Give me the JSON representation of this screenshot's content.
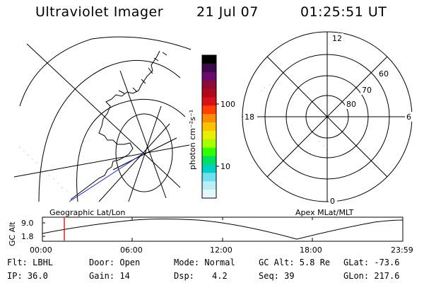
{
  "header": {
    "instrument": "Ultraviolet Imager",
    "date": "21 Jul 07",
    "time": "01:25:51 UT"
  },
  "colorbar": {
    "label": "photon cm⁻²s⁻¹",
    "ticks": [
      "100",
      "10"
    ],
    "colors": [
      "#000000",
      "#3a0a4a",
      "#6a0a6a",
      "#8a0a3a",
      "#b00a1a",
      "#d8101a",
      "#ff4000",
      "#ff8c00",
      "#ffc000",
      "#e8f000",
      "#a8ff00",
      "#30ff00",
      "#00e060",
      "#00d0c0",
      "#70e0f0",
      "#b8eef5",
      "#e6f7fa"
    ]
  },
  "map_labels": {
    "left": "Geographic Lat/Lon",
    "right": "Apex MLat/MLT"
  },
  "polar": {
    "mlt_labels": {
      "top": "12",
      "left": "18",
      "right": "6",
      "bottom": "0"
    },
    "lat_labels": [
      "60",
      "70",
      "80"
    ]
  },
  "timeline": {
    "ylabel": "GC Alt",
    "yticks": [
      "9.0",
      "1.8"
    ],
    "xticks": [
      "00:00",
      "06:00",
      "12:00",
      "18:00",
      "23:59"
    ],
    "current_time": "01:25:51"
  },
  "info": {
    "filter": "Flt: LBHL",
    "ip": "IP: 36.0",
    "door": "Door: Open",
    "gain": "Gain: 14",
    "mode": "Mode: Normal",
    "dsp_label": "Dsp:",
    "dsp_value": "4.2",
    "gc_alt": "GC Alt: 5.8 Re",
    "seq": "Seq: 39",
    "glat": "GLat: -73.6",
    "glon": "GLon: 217.6"
  },
  "colors": {
    "orbit_line": "#000000",
    "marker": "#e00000",
    "track": "#2030c0",
    "coast": "#000000"
  }
}
